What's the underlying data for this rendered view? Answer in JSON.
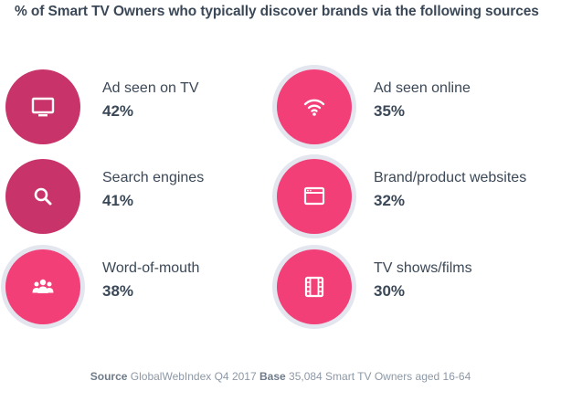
{
  "chart_data": {
    "type": "icon-stat",
    "title": "% of Smart TV Owners who typically discover brands via the following sources",
    "items": [
      {
        "label": "Ad seen on TV",
        "value": "42%",
        "icon": "tv-icon",
        "color": "#c8336a",
        "ring": false
      },
      {
        "label": "Ad seen online",
        "value": "35%",
        "icon": "wifi-icon",
        "color": "#f23f77",
        "ring": true
      },
      {
        "label": "Search engines",
        "value": "41%",
        "icon": "search-icon",
        "color": "#c8336a",
        "ring": false
      },
      {
        "label": "Brand/product websites",
        "value": "32%",
        "icon": "browser-window-icon",
        "color": "#f23f77",
        "ring": true
      },
      {
        "label": "Word-of-mouth",
        "value": "38%",
        "icon": "people-group-icon",
        "color": "#f23f77",
        "ring": true
      },
      {
        "label": "TV shows/films",
        "value": "30%",
        "icon": "film-strip-icon",
        "color": "#f23f77",
        "ring": true
      }
    ],
    "ring_color": "#e3e6ef"
  },
  "footer": {
    "source_label": "Source",
    "source_text": "GlobalWebIndex Q4 2017",
    "base_label": "Base",
    "base_text": "35,084 Smart TV Owners aged 16-64"
  }
}
